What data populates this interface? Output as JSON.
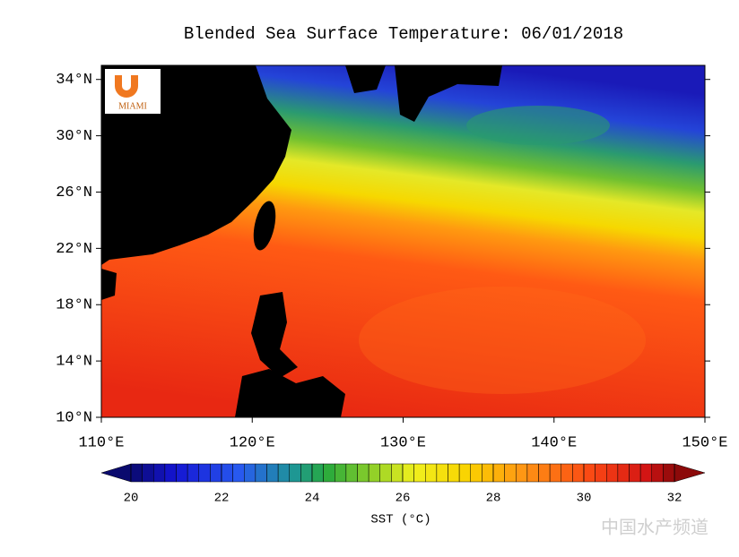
{
  "title": "Blended Sea Surface Temperature: 06/01/2018",
  "logo": "MIAMI",
  "map": {
    "lonlim": [
      110,
      150
    ],
    "latlim": [
      10,
      35
    ],
    "lonticks": [
      {
        "value": 110,
        "label": "110°E"
      },
      {
        "value": 120,
        "label": "120°E"
      },
      {
        "value": 130,
        "label": "130°E"
      },
      {
        "value": 140,
        "label": "140°E"
      },
      {
        "value": 150,
        "label": "150°E"
      }
    ],
    "latticks": [
      {
        "value": 10,
        "label": "10°N"
      },
      {
        "value": 14,
        "label": "14°N"
      },
      {
        "value": 18,
        "label": "18°N"
      },
      {
        "value": 22,
        "label": "22°N"
      },
      {
        "value": 26,
        "label": "26°N"
      },
      {
        "value": 30,
        "label": "30°N"
      },
      {
        "value": 34,
        "label": "34°N"
      }
    ]
  },
  "colorbar": {
    "range": [
      20,
      32
    ],
    "ticks": [
      20,
      22,
      24,
      26,
      28,
      30,
      32
    ],
    "label": "SST (°C)"
  },
  "watermark": "中国水产频道"
}
